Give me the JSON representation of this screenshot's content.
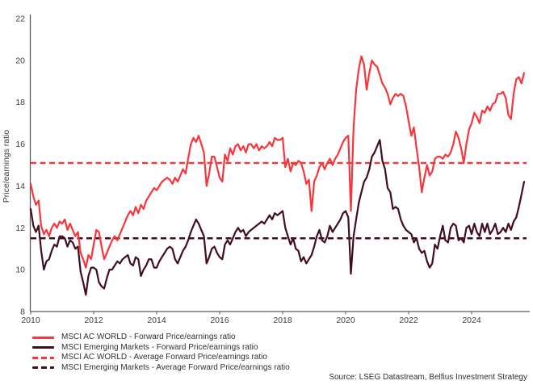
{
  "colors": {
    "world": "#F8353A",
    "em": "#410E1F",
    "axis": "#5a5a5a",
    "text": "#3d3d3d"
  },
  "y_axis": {
    "label": "Price/earnings ratio",
    "min": 8,
    "max": 22,
    "ticks": [
      8,
      10,
      12,
      14,
      16,
      18,
      20,
      22
    ]
  },
  "x_axis": {
    "ticks": [
      2010,
      2012,
      2014,
      2016,
      2018,
      2020,
      2022,
      2024
    ]
  },
  "source": "Source: LSEG Datastream, Belfius Investment Strategy",
  "chart_data": {
    "type": "line",
    "x_start_year": 2010,
    "x_points_per_year": 12,
    "x_end_label": "2025 (Sep)",
    "grid": false,
    "legend_position": "bottom-left",
    "ylim": [
      8,
      22
    ],
    "series": [
      {
        "name": "MSCI AC WORLD - Forward Price/earnings ratio",
        "color_key": "world",
        "style": "solid",
        "values": [
          14.1,
          13.5,
          13.1,
          13.3,
          12.1,
          11.7,
          11.9,
          11.6,
          12.0,
          12.2,
          12.0,
          12.3,
          12.2,
          12.4,
          11.9,
          12.2,
          11.9,
          11.6,
          11.8,
          10.8,
          10.5,
          10.1,
          10.7,
          10.5,
          11.2,
          11.9,
          11.8,
          11.1,
          10.5,
          10.8,
          11.1,
          11.4,
          11.6,
          11.4,
          11.7,
          12.0,
          12.3,
          12.6,
          12.8,
          12.6,
          13.0,
          12.7,
          13.1,
          12.9,
          13.3,
          13.5,
          13.7,
          13.9,
          13.8,
          14.0,
          14.2,
          14.3,
          14.4,
          14.3,
          14.1,
          14.4,
          14.2,
          14.5,
          14.8,
          14.6,
          15.3,
          16.0,
          16.3,
          16.1,
          16.4,
          16.0,
          15.6,
          14.0,
          14.6,
          15.4,
          15.4,
          14.9,
          14.4,
          14.2,
          15.5,
          15.2,
          15.8,
          15.5,
          15.9,
          16.0,
          15.7,
          15.9,
          15.6,
          16.0,
          16.0,
          15.8,
          16.0,
          15.7,
          15.9,
          15.8,
          15.9,
          16.1,
          15.9,
          16.3,
          16.2,
          16.2,
          16.3,
          14.9,
          15.3,
          14.7,
          15.1,
          15.0,
          15.2,
          15.1,
          14.7,
          14.1,
          14.3,
          12.8,
          14.2,
          14.5,
          14.9,
          15.1,
          14.8,
          15.1,
          15.3,
          15.0,
          15.3,
          15.5,
          15.8,
          16.1,
          16.3,
          16.4,
          12.8,
          16.8,
          18.6,
          19.6,
          20.2,
          19.8,
          18.6,
          19.4,
          20.0,
          19.8,
          19.7,
          19.3,
          18.9,
          18.7,
          18.4,
          17.9,
          18.2,
          18.4,
          18.3,
          18.4,
          18.3,
          17.8,
          17.1,
          16.4,
          16.8,
          15.8,
          14.9,
          13.7,
          14.4,
          15.0,
          14.5,
          14.7,
          15.3,
          15.4,
          15.4,
          15.3,
          15.5,
          15.4,
          15.6,
          16.0,
          16.6,
          16.3,
          15.8,
          15.1,
          16.0,
          16.7,
          17.0,
          17.5,
          17.3,
          17.0,
          17.6,
          17.5,
          17.8,
          17.6,
          17.9,
          18.0,
          18.4,
          18.4,
          18.5,
          18.2,
          17.4,
          17.2,
          18.4,
          19.1,
          19.2,
          18.9,
          19.4
        ]
      },
      {
        "name": "MSCI Emerging Markets - Forward Price/earnings ratio",
        "color_key": "em",
        "style": "solid",
        "values": [
          12.9,
          12.1,
          11.8,
          12.1,
          10.9,
          10.0,
          10.4,
          10.5,
          10.9,
          11.2,
          11.1,
          11.6,
          11.6,
          11.5,
          11.1,
          11.4,
          11.3,
          11.0,
          11.1,
          9.9,
          9.4,
          8.8,
          9.7,
          10.1,
          10.1,
          10.0,
          9.4,
          9.2,
          9.1,
          9.6,
          10.0,
          10.0,
          10.2,
          10.4,
          10.3,
          10.5,
          10.6,
          10.7,
          10.3,
          10.2,
          10.6,
          10.5,
          9.7,
          10.0,
          10.2,
          10.5,
          10.5,
          10.1,
          10.1,
          10.4,
          10.6,
          10.8,
          11.0,
          11.1,
          11.0,
          10.5,
          10.3,
          10.6,
          10.9,
          11.1,
          11.4,
          11.8,
          12.1,
          12.4,
          12.2,
          11.9,
          11.6,
          10.3,
          10.6,
          11.0,
          11.1,
          10.8,
          10.6,
          10.5,
          11.2,
          11.4,
          11.2,
          11.5,
          11.8,
          12.0,
          11.8,
          11.9,
          11.6,
          11.8,
          11.9,
          12.0,
          12.1,
          12.2,
          12.3,
          12.2,
          12.4,
          12.6,
          12.4,
          12.7,
          12.6,
          12.7,
          12.8,
          12.0,
          11.6,
          11.2,
          11.5,
          11.0,
          10.9,
          10.4,
          10.6,
          10.3,
          10.5,
          10.7,
          11.1,
          11.6,
          11.9,
          11.4,
          11.3,
          11.6,
          12.1,
          11.8,
          12.0,
          12.2,
          12.4,
          12.7,
          12.8,
          12.5,
          9.8,
          11.6,
          12.4,
          13.2,
          13.7,
          14.2,
          14.4,
          14.8,
          15.4,
          15.6,
          15.9,
          16.2,
          15.2,
          14.8,
          13.9,
          13.7,
          12.9,
          13.0,
          12.9,
          12.4,
          12.1,
          11.9,
          11.8,
          11.7,
          11.3,
          11.5,
          11.0,
          10.8,
          10.9,
          10.4,
          10.1,
          10.3,
          11.2,
          11.0,
          11.6,
          12.1,
          11.4,
          11.3,
          12.0,
          12.2,
          12.1,
          11.4,
          11.5,
          11.3,
          12.0,
          12.1,
          11.7,
          12.2,
          11.8,
          11.6,
          12.2,
          11.8,
          12.2,
          11.7,
          11.9,
          12.2,
          11.7,
          11.8,
          12.0,
          11.8,
          12.2,
          11.9,
          12.3,
          12.5,
          13.0,
          13.6,
          14.2
        ]
      },
      {
        "name": "MSCI AC WORLD - Average Forward Price/earnings ratio",
        "color_key": "world",
        "style": "dashed",
        "value": 15.1
      },
      {
        "name": "MSCI Emerging Markets - Average Forward Price/earnings ratio",
        "color_key": "em",
        "style": "dashed",
        "value": 11.5
      }
    ]
  }
}
